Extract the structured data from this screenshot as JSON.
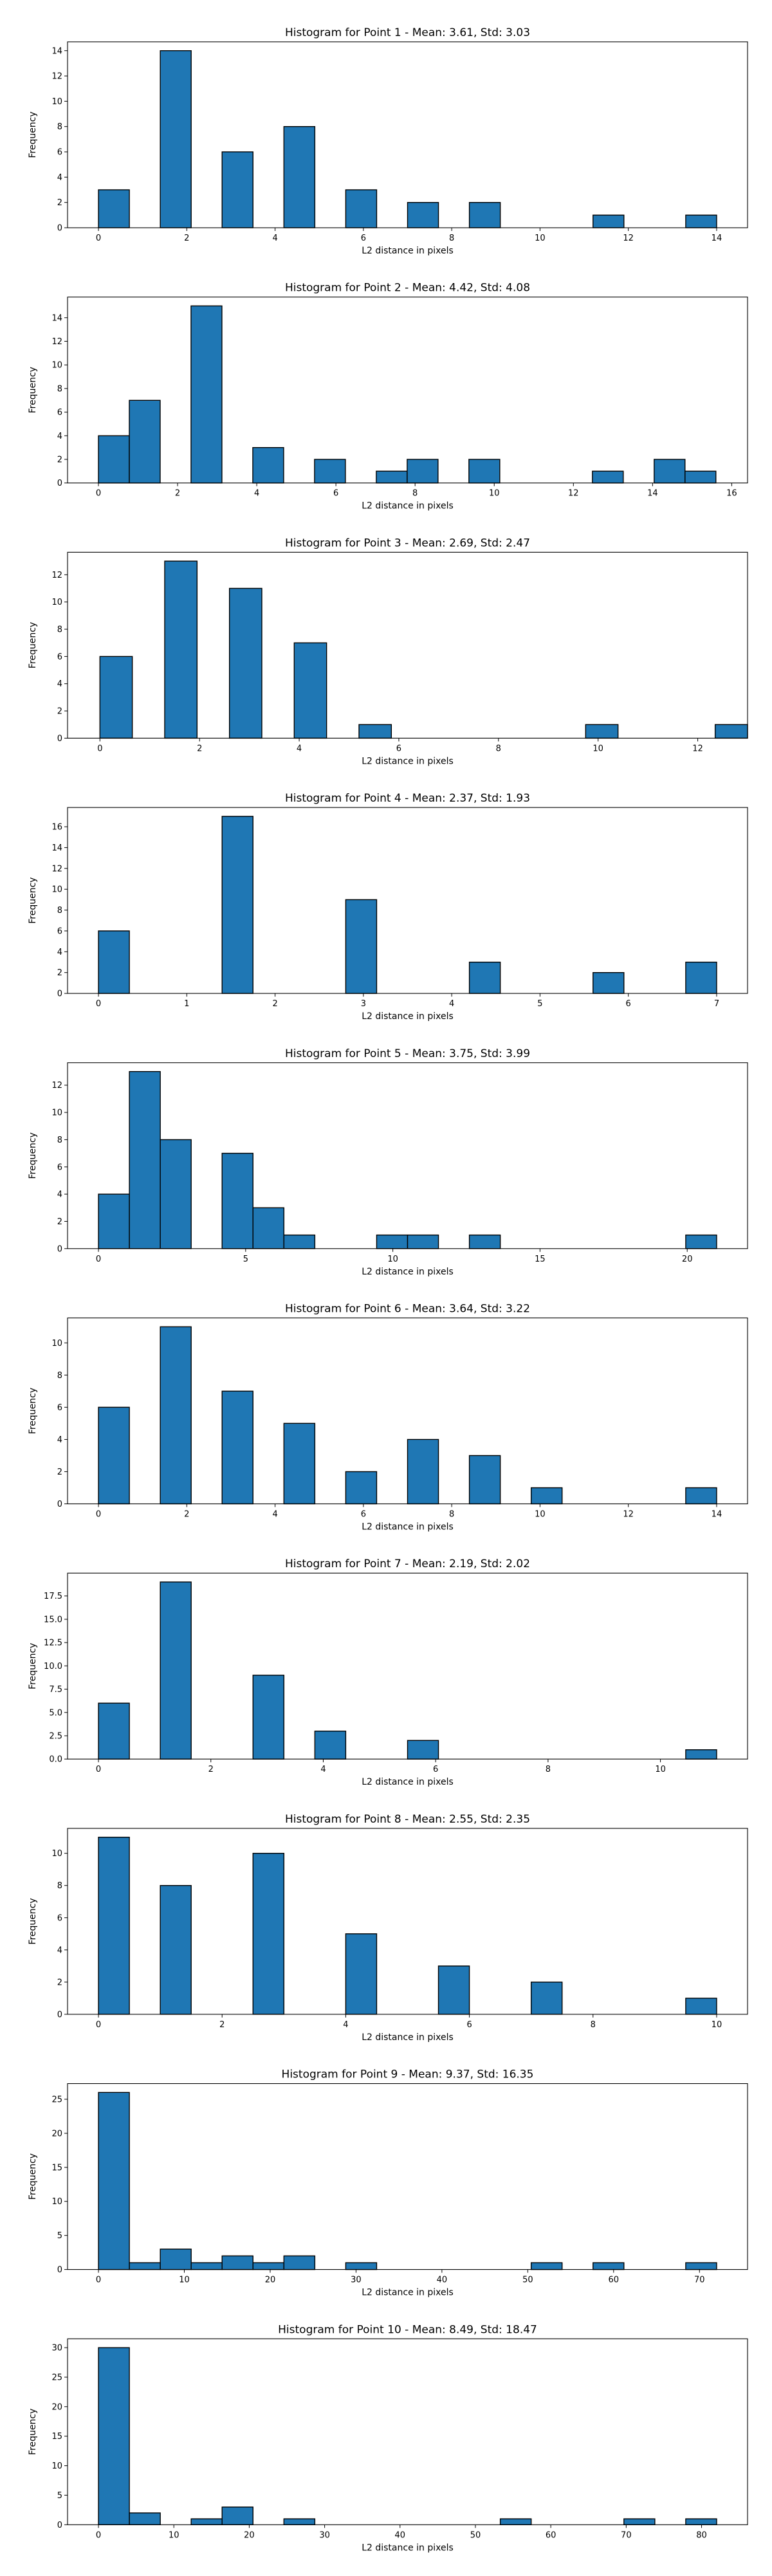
{
  "colors": {
    "bar_fill": "#1f77b4",
    "bar_edge": "#000000",
    "axis": "#000000"
  },
  "chart_data": [
    {
      "type": "bar",
      "title": "Histogram for Point 1 - Mean: 3.61, Std: 3.03",
      "xlabel": "L2 distance in pixels",
      "ylabel": "Frequency",
      "xlim": [
        -0.7,
        14.7
      ],
      "ylim": [
        0,
        14.7
      ],
      "xticks": [
        0,
        2,
        4,
        6,
        8,
        10,
        12,
        14
      ],
      "yticks": [
        0,
        2,
        4,
        6,
        8,
        10,
        12,
        14
      ],
      "bin_width": 0.7,
      "bins": [
        [
          0,
          3
        ],
        [
          1.4,
          14
        ],
        [
          2.8,
          6
        ],
        [
          4.2,
          8
        ],
        [
          5.6,
          3
        ],
        [
          7,
          2
        ],
        [
          8.4,
          2
        ],
        [
          11.2,
          1
        ],
        [
          13.3,
          1
        ]
      ],
      "grid": false
    },
    {
      "type": "bar",
      "title": "Histogram for Point 2 - Mean: 4.42, Std: 4.08",
      "xlabel": "L2 distance in pixels",
      "ylabel": "Frequency",
      "xlim": [
        -0.78,
        16.4
      ],
      "ylim": [
        0,
        15.75
      ],
      "xticks": [
        0,
        2,
        4,
        6,
        8,
        10,
        12,
        14,
        16
      ],
      "yticks": [
        0,
        2,
        4,
        6,
        8,
        10,
        12,
        14
      ],
      "bin_width": 0.78,
      "bins": [
        [
          0,
          4
        ],
        [
          0.78,
          7
        ],
        [
          2.34,
          15
        ],
        [
          3.9,
          3
        ],
        [
          5.46,
          2
        ],
        [
          7.02,
          1
        ],
        [
          7.8,
          2
        ],
        [
          9.36,
          2
        ],
        [
          12.48,
          1
        ],
        [
          14.04,
          2
        ],
        [
          14.82,
          1
        ]
      ],
      "grid": false
    },
    {
      "type": "bar",
      "title": "Histogram for Point 3 - Mean: 2.69, Std: 2.47",
      "xlabel": "L2 distance in pixels",
      "ylabel": "Frequency",
      "xlim": [
        -0.65,
        13.0
      ],
      "ylim": [
        0,
        13.65
      ],
      "xticks": [
        0,
        2,
        4,
        6,
        8,
        10,
        12
      ],
      "yticks": [
        0,
        2,
        4,
        6,
        8,
        10,
        12
      ],
      "bin_width": 0.65,
      "bins": [
        [
          0,
          6
        ],
        [
          1.3,
          13
        ],
        [
          2.6,
          11
        ],
        [
          3.9,
          7
        ],
        [
          5.2,
          1
        ],
        [
          9.75,
          1
        ],
        [
          12.35,
          1
        ]
      ],
      "grid": false
    },
    {
      "type": "bar",
      "title": "Histogram for Point 4 - Mean: 2.37, Std: 1.93",
      "xlabel": "L2 distance in pixels",
      "ylabel": "Frequency",
      "xlim": [
        -0.35,
        7.35
      ],
      "ylim": [
        0,
        17.85
      ],
      "xticks": [
        0,
        1,
        2,
        3,
        4,
        5,
        6,
        7
      ],
      "yticks": [
        0,
        2,
        4,
        6,
        8,
        10,
        12,
        14,
        16
      ],
      "bin_width": 0.35,
      "bins": [
        [
          0,
          6
        ],
        [
          1.4,
          17
        ],
        [
          2.8,
          9
        ],
        [
          4.2,
          3
        ],
        [
          5.6,
          2
        ],
        [
          6.65,
          3
        ]
      ],
      "grid": false
    },
    {
      "type": "bar",
      "title": "Histogram for Point 5 - Mean: 3.75, Std: 3.99",
      "xlabel": "L2 distance in pixels",
      "ylabel": "Frequency",
      "xlim": [
        -1.05,
        22.05
      ],
      "ylim": [
        0,
        13.65
      ],
      "xticks": [
        0,
        5,
        10,
        15,
        20
      ],
      "yticks": [
        0,
        2,
        4,
        6,
        8,
        10,
        12
      ],
      "bin_width": 1.05,
      "bins": [
        [
          0,
          4
        ],
        [
          1.05,
          13
        ],
        [
          2.1,
          8
        ],
        [
          4.2,
          7
        ],
        [
          5.25,
          3
        ],
        [
          6.3,
          1
        ],
        [
          9.45,
          1
        ],
        [
          10.5,
          1
        ],
        [
          12.6,
          1
        ],
        [
          19.95,
          1
        ]
      ],
      "grid": false
    },
    {
      "type": "bar",
      "title": "Histogram for Point 6 - Mean: 3.64, Std: 3.22",
      "xlabel": "L2 distance in pixels",
      "ylabel": "Frequency",
      "xlim": [
        -0.7,
        14.7
      ],
      "ylim": [
        0,
        11.55
      ],
      "xticks": [
        0,
        2,
        4,
        6,
        8,
        10,
        12,
        14
      ],
      "yticks": [
        0,
        2,
        4,
        6,
        8,
        10
      ],
      "bin_width": 0.7,
      "bins": [
        [
          0,
          6
        ],
        [
          1.4,
          11
        ],
        [
          2.8,
          7
        ],
        [
          4.2,
          5
        ],
        [
          5.6,
          2
        ],
        [
          7,
          4
        ],
        [
          8.4,
          3
        ],
        [
          9.8,
          1
        ],
        [
          13.3,
          1
        ]
      ],
      "grid": false
    },
    {
      "type": "bar",
      "title": "Histogram for Point 7 - Mean: 2.19, Std: 2.02",
      "xlabel": "L2 distance in pixels",
      "ylabel": "Frequency",
      "xlim": [
        -0.55,
        11.55
      ],
      "ylim": [
        0,
        19.95
      ],
      "xticks": [
        0,
        2,
        4,
        6,
        8,
        10
      ],
      "yticks": [
        "0.0",
        "2.5",
        "5.0",
        "7.5",
        "10.0",
        "12.5",
        "15.0",
        "17.5"
      ],
      "bin_width": 0.55,
      "bins": [
        [
          0,
          6
        ],
        [
          1.1,
          19
        ],
        [
          2.75,
          9
        ],
        [
          3.85,
          3
        ],
        [
          5.5,
          2
        ],
        [
          10.45,
          1
        ]
      ],
      "grid": false
    },
    {
      "type": "bar",
      "title": "Histogram for Point 8 - Mean: 2.55, Std: 2.35",
      "xlabel": "L2 distance in pixels",
      "ylabel": "Frequency",
      "xlim": [
        -0.5,
        10.5
      ],
      "ylim": [
        0,
        11.55
      ],
      "xticks": [
        0,
        2,
        4,
        6,
        8,
        10
      ],
      "yticks": [
        0,
        2,
        4,
        6,
        8,
        10
      ],
      "bin_width": 0.5,
      "bins": [
        [
          0,
          11
        ],
        [
          1,
          8
        ],
        [
          2.5,
          10
        ],
        [
          4,
          5
        ],
        [
          5.5,
          3
        ],
        [
          7,
          2
        ],
        [
          9.5,
          1
        ]
      ],
      "grid": false
    },
    {
      "type": "bar",
      "title": "Histogram for Point 9 - Mean: 9.37, Std: 16.35",
      "xlabel": "L2 distance in pixels",
      "ylabel": "Frequency",
      "xlim": [
        -3.6,
        75.6
      ],
      "ylim": [
        0,
        27.3
      ],
      "xticks": [
        0,
        10,
        20,
        30,
        40,
        50,
        60,
        70
      ],
      "yticks": [
        0,
        5,
        10,
        15,
        20,
        25
      ],
      "bin_width": 3.6,
      "bins": [
        [
          0,
          26
        ],
        [
          3.6,
          1
        ],
        [
          7.2,
          3
        ],
        [
          10.8,
          1
        ],
        [
          14.4,
          2
        ],
        [
          18,
          1
        ],
        [
          21.6,
          2
        ],
        [
          28.8,
          1
        ],
        [
          50.4,
          1
        ],
        [
          57.6,
          1
        ],
        [
          68.4,
          1
        ]
      ],
      "grid": false
    },
    {
      "type": "bar",
      "title": "Histogram for Point 10 - Mean: 8.49, Std: 18.47",
      "xlabel": "L2 distance in pixels",
      "ylabel": "Frequency",
      "xlim": [
        -4.1,
        86.1
      ],
      "ylim": [
        0,
        31.5
      ],
      "xticks": [
        0,
        10,
        20,
        30,
        40,
        50,
        60,
        70,
        80
      ],
      "yticks": [
        0,
        5,
        10,
        15,
        20,
        25,
        30
      ],
      "bin_width": 4.1,
      "bins": [
        [
          0,
          30
        ],
        [
          4.1,
          2
        ],
        [
          12.3,
          1
        ],
        [
          16.4,
          3
        ],
        [
          24.6,
          1
        ],
        [
          53.3,
          1
        ],
        [
          69.7,
          1
        ],
        [
          77.9,
          1
        ]
      ],
      "grid": false
    }
  ]
}
